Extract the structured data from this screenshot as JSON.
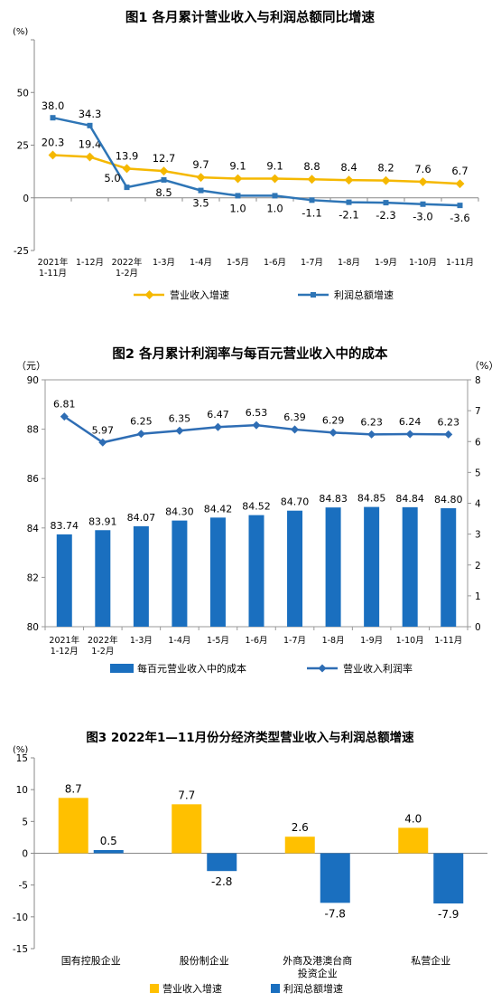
{
  "chart_data": [
    {
      "type": "line",
      "title": "图1  各月累计营业收入与利润总额同比增速",
      "y_unit": "(%)",
      "ylim": [
        -25,
        75
      ],
      "y_ticks": [
        -25,
        0,
        25,
        50
      ],
      "grid": false,
      "legend_position": "bottom",
      "categories": [
        "2021年\n1-11月",
        "1-12月",
        "2022年\n1-2月",
        "1-3月",
        "1-4月",
        "1-5月",
        "1-6月",
        "1-7月",
        "1-8月",
        "1-9月",
        "1-10月",
        "1-11月"
      ],
      "series": [
        {
          "name": "营业收入增速",
          "color": "#F5B800",
          "values": [
            20.3,
            19.4,
            13.9,
            12.7,
            9.7,
            9.1,
            9.1,
            8.8,
            8.4,
            8.2,
            7.6,
            6.7
          ],
          "labels": [
            "20.3",
            "19.4",
            "13.9",
            "12.7",
            "9.7",
            "9.1",
            "9.1",
            "8.8",
            "8.4",
            "8.2",
            "7.6",
            "6.7"
          ]
        },
        {
          "name": "利润总额增速",
          "color": "#2E75B6",
          "values": [
            38.0,
            34.3,
            5.0,
            8.5,
            3.5,
            1.0,
            1.0,
            -1.1,
            -2.1,
            -2.3,
            -3.0,
            -3.6
          ],
          "labels": [
            "38.0",
            "34.3",
            "5.0",
            "8.5",
            "3.5",
            "1.0",
            "1.0",
            "-1.1",
            "-2.1",
            "-2.3",
            "-3.0",
            "-3.6"
          ]
        }
      ]
    },
    {
      "type": "bar",
      "title": "图2  各月累计利润率与每百元营业收入中的成本",
      "y_left_unit": "（元）",
      "y_right_unit": "（%）",
      "ylim_left": [
        80,
        90
      ],
      "ylim_right": [
        0,
        8
      ],
      "y_left_ticks": [
        80,
        82,
        84,
        86,
        88,
        90
      ],
      "y_right_ticks": [
        0,
        1,
        2,
        3,
        4,
        5,
        6,
        7,
        8
      ],
      "grid": false,
      "legend_position": "bottom",
      "categories": [
        "2021年\n1-12月",
        "2022年\n1-2月",
        "1-3月",
        "1-4月",
        "1-5月",
        "1-6月",
        "1-7月",
        "1-8月",
        "1-9月",
        "1-10月",
        "1-11月"
      ],
      "bar_series": {
        "name": "每百元营业收入中的成本",
        "color": "#1A6FBF",
        "axis": "left",
        "values": [
          83.74,
          83.91,
          84.07,
          84.3,
          84.42,
          84.52,
          84.7,
          84.83,
          84.85,
          84.84,
          84.8
        ],
        "labels": [
          "83.74",
          "83.91",
          "84.07",
          "84.30",
          "84.42",
          "84.52",
          "84.70",
          "84.83",
          "84.85",
          "84.84",
          "84.80"
        ]
      },
      "line_series": {
        "name": "营业收入利润率",
        "color": "#2E6DB4",
        "axis": "right",
        "values": [
          6.81,
          5.97,
          6.25,
          6.35,
          6.47,
          6.53,
          6.39,
          6.29,
          6.23,
          6.24,
          6.23
        ],
        "labels": [
          "6.81",
          "5.97",
          "6.25",
          "6.35",
          "6.47",
          "6.53",
          "6.39",
          "6.29",
          "6.23",
          "6.24",
          "6.23"
        ]
      }
    },
    {
      "type": "bar",
      "title": "图3  2022年1—11月份分经济类型营业收入与利润总额增速",
      "y_unit": "(%)",
      "ylim": [
        -15,
        15
      ],
      "y_ticks": [
        -15,
        -10,
        -5,
        0,
        5,
        10,
        15
      ],
      "grid": false,
      "legend_position": "bottom",
      "categories": [
        "国有控股企业",
        "股份制企业",
        "外商及港澳台商\n投资企业",
        "私营企业"
      ],
      "series": [
        {
          "name": "营业收入增速",
          "color": "#FFC000",
          "values": [
            8.7,
            7.7,
            2.6,
            4.0
          ],
          "labels": [
            "8.7",
            "7.7",
            "2.6",
            "4.0"
          ]
        },
        {
          "name": "利润总额增速",
          "color": "#1A6FBF",
          "values": [
            0.5,
            -2.8,
            -7.8,
            -7.9
          ],
          "labels": [
            "0.5",
            "-2.8",
            "-7.8",
            "-7.9"
          ]
        }
      ]
    }
  ]
}
